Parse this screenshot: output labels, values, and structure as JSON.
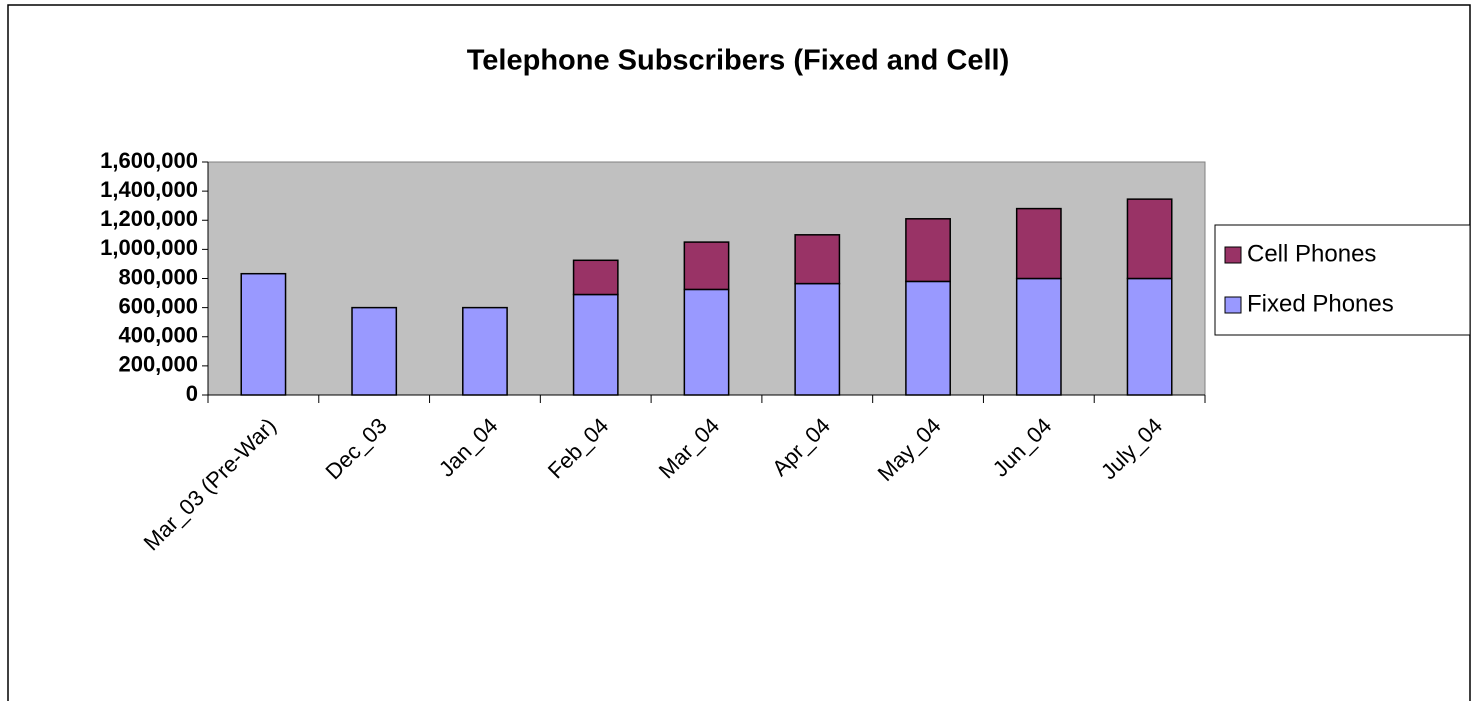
{
  "chart_data": {
    "type": "stacked_bar",
    "title": "Telephone Subscribers (Fixed and Cell)",
    "categories": [
      "Mar_03 (Pre-War)",
      "Dec_03",
      "Jan_04",
      "Feb_04",
      "Mar_04",
      "Apr_04",
      "May_04",
      "Jun_04",
      "July_04"
    ],
    "series": [
      {
        "name": "Fixed Phones",
        "color": "#9999ff",
        "values": [
          833000,
          600000,
          600000,
          690000,
          725000,
          765000,
          780000,
          800000,
          800000
        ]
      },
      {
        "name": "Cell Phones",
        "color": "#993366",
        "values": [
          0,
          0,
          0,
          235000,
          325000,
          335000,
          430000,
          480000,
          545000
        ]
      }
    ],
    "ylim": [
      0,
      1600000
    ],
    "yticks": [
      0,
      {
        "value": 200000,
        "label": "200,000"
      },
      {
        "value": 400000,
        "label": "400,000"
      },
      {
        "value": 600000,
        "label": "600,000"
      },
      {
        "value": 800000,
        "label": "800,000"
      },
      {
        "value": 1000000,
        "label": "1,000,000"
      },
      {
        "value": 1200000,
        "label": "1,200,000"
      },
      {
        "value": 1400000,
        "label": "1,400,000"
      },
      {
        "value": 1600000,
        "label": "1,600,000"
      }
    ],
    "plot_background": "#c0c0c0",
    "legend": "right"
  }
}
